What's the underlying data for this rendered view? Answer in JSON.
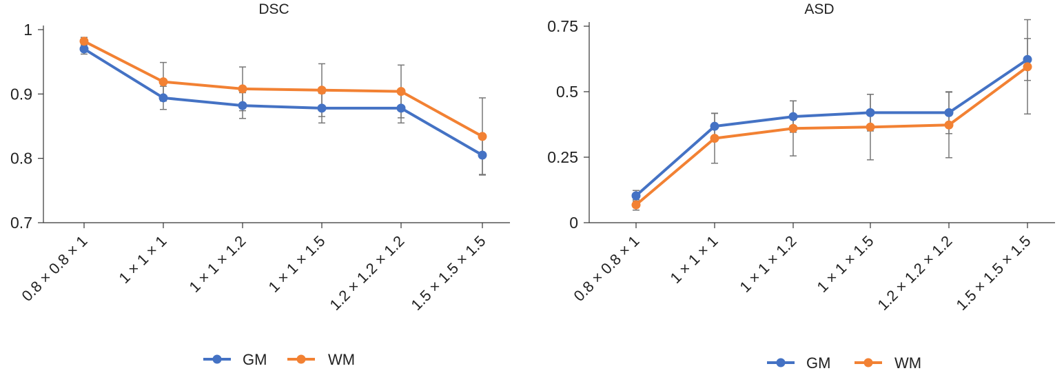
{
  "colors": {
    "GM": "#4472C4",
    "WM": "#F28133",
    "error_bar": "#777777",
    "axis": "#333333"
  },
  "chart_data": [
    {
      "type": "line",
      "title": "DSC",
      "xlabel": "",
      "ylabel": "",
      "categories": [
        "0.8 × 0.8 × 1",
        "1 × 1 × 1",
        "1 × 1 × 1.2",
        "1 × 1 × 1.5",
        "1.2 × 1.2 × 1.2",
        "1.5 × 1.5 × 1.5"
      ],
      "ylim": [
        0.7,
        1.0
      ],
      "yticks": [
        0.7,
        0.8,
        0.9,
        1.0
      ],
      "ytick_labels": [
        "0.7",
        "0.8",
        "0.9",
        "1"
      ],
      "legend": "bottom",
      "grid": false,
      "series": [
        {
          "name": "GM",
          "values": [
            0.97,
            0.894,
            0.882,
            0.878,
            0.878,
            0.805
          ],
          "err_low": [
            0.962,
            0.876,
            0.862,
            0.855,
            0.855,
            0.775
          ],
          "err_high": [
            0.978,
            0.912,
            0.902,
            0.901,
            0.901,
            0.835
          ]
        },
        {
          "name": "WM",
          "values": [
            0.982,
            0.919,
            0.908,
            0.906,
            0.904,
            0.834
          ],
          "err_low": [
            0.976,
            0.889,
            0.874,
            0.865,
            0.863,
            0.774
          ],
          "err_high": [
            0.988,
            0.949,
            0.942,
            0.947,
            0.945,
            0.894
          ]
        }
      ]
    },
    {
      "type": "line",
      "title": "ASD",
      "xlabel": "",
      "ylabel": "",
      "categories": [
        "0.8 × 0.8 × 1",
        "1 × 1 × 1",
        "1 × 1 × 1.2",
        "1 × 1 × 1.5",
        "1.2 × 1.2 × 1.2",
        "1.5 × 1.5 × 1.5"
      ],
      "ylim": [
        0,
        0.75
      ],
      "yticks": [
        0,
        0.25,
        0.5,
        0.75
      ],
      "ytick_labels": [
        "0",
        "0.25",
        "0.5",
        "0.75"
      ],
      "legend": "bottom",
      "grid": false,
      "series": [
        {
          "name": "GM",
          "values": [
            0.103,
            0.368,
            0.405,
            0.42,
            0.42,
            0.623
          ],
          "err_low": [
            0.083,
            0.318,
            0.345,
            0.35,
            0.34,
            0.543
          ],
          "err_high": [
            0.123,
            0.418,
            0.465,
            0.49,
            0.5,
            0.703
          ]
        },
        {
          "name": "WM",
          "values": [
            0.068,
            0.322,
            0.36,
            0.365,
            0.373,
            0.595
          ],
          "err_low": [
            0.048,
            0.227,
            0.255,
            0.24,
            0.248,
            0.415
          ],
          "err_high": [
            0.088,
            0.417,
            0.465,
            0.49,
            0.498,
            0.775
          ]
        }
      ]
    }
  ]
}
